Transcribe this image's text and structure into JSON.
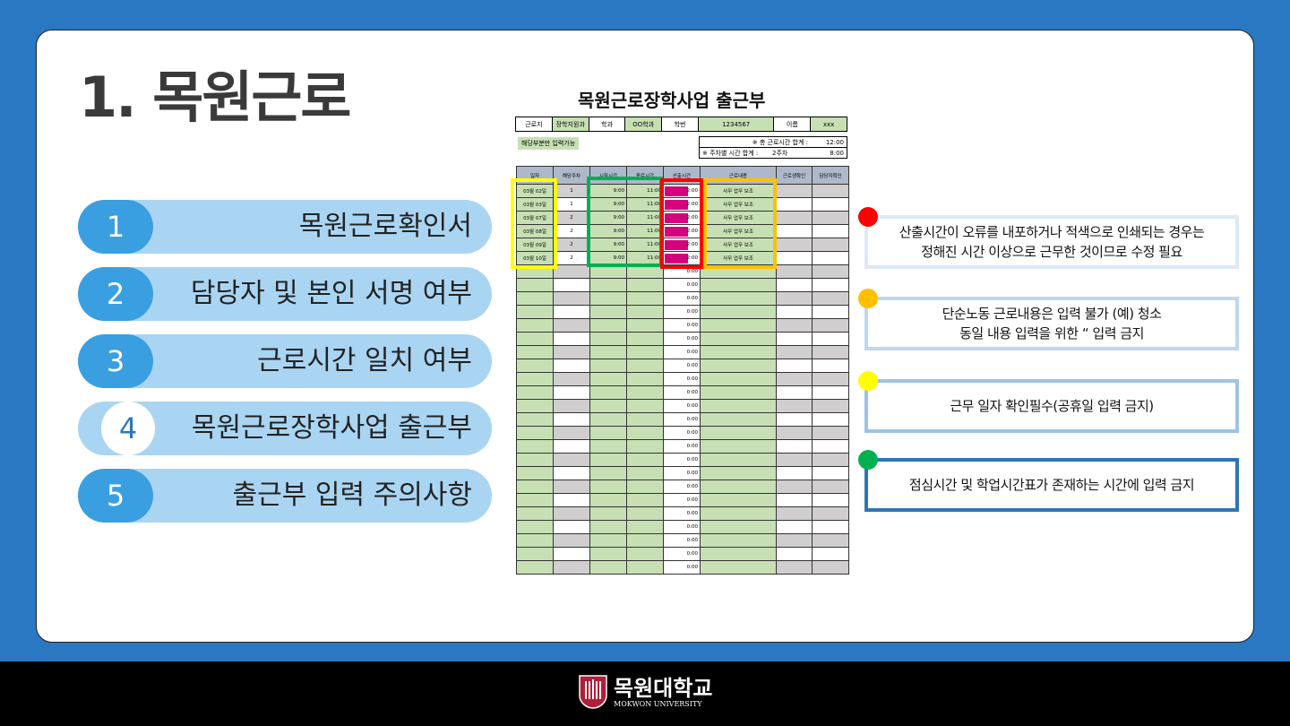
{
  "title": "1. 목원근로",
  "menu": [
    {
      "num": "1",
      "label": "목원근로확인서"
    },
    {
      "num": "2",
      "label": "담당자 및 본인 서명 여부"
    },
    {
      "num": "3",
      "label": "근로시간 일치 여부"
    },
    {
      "num": "4",
      "label": "목원근로장학사업 출근부"
    },
    {
      "num": "5",
      "label": "출근부 입력 주의사항"
    }
  ],
  "sheet": {
    "title": "목원근로장학사업 출근부",
    "info": [
      "근로지",
      "장학지원과",
      "학과",
      "OO학과",
      "학번",
      "1234567",
      "이름",
      "xxx"
    ],
    "note": "해당부분만 입력가능",
    "total_label": "※ 총 근로시간 합계 :",
    "total_value": "12:00",
    "weekly_label": "※ 주차별 시간 합계 :",
    "weekly_week": "2주차",
    "weekly_value": "8:00",
    "headers": [
      "일자",
      "해당주차",
      "시작시간",
      "종료시간",
      "산출시간",
      "근로내용",
      "근로생확인",
      "담당자확인"
    ],
    "rows": [
      [
        "03월 02일",
        "1",
        "9:00",
        "11:00",
        "2:00",
        "사무 업무 보조"
      ],
      [
        "03월 03일",
        "1",
        "9:00",
        "11:00",
        "2:00",
        "사무 업무 보조"
      ],
      [
        "03월 07일",
        "2",
        "9:00",
        "11:00",
        "2:00",
        "사무 업무 보조"
      ],
      [
        "03월 08일",
        "2",
        "9:00",
        "11:00",
        "2:00",
        "사무 업무 보조"
      ],
      [
        "03월 09일",
        "2",
        "9:00",
        "11:00",
        "2:00",
        "사무 업무 보조"
      ],
      [
        "03월 10일",
        "2",
        "9:00",
        "11:00",
        "2:00",
        "사무 업무 보조"
      ]
    ],
    "empty_calc": "0:00"
  },
  "notes": [
    {
      "color": "#ff0000",
      "border": "#dde9f5",
      "text": "산출시간이 오류를 내포하거나 적색으로 인쇄되는 경우는\n정해진 시간 이상으로 근무한 것이므로 수정 필요"
    },
    {
      "color": "#ffc000",
      "border": "#bdd7ee",
      "text": "단순노동 근로내용은 입력 불가 (예) 청소\n동일 내용 입력을 위한 “ 입력 금지"
    },
    {
      "color": "#ffff00",
      "border": "#9dc3e6",
      "text": "근무 일자 확인필수(공휴일 입력 금지)"
    },
    {
      "color": "#00b050",
      "border": "#2e75b6",
      "text": "점심시간 및 학업시간표가 존재하는 시간에 입력 금지"
    }
  ],
  "logo": {
    "name": "목원대학교",
    "sub": "MOKWON UNIVERSITY"
  }
}
